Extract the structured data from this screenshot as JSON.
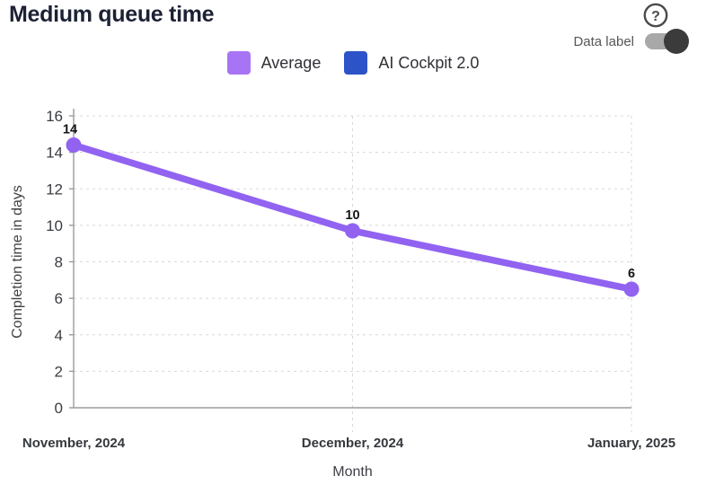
{
  "header": {
    "title": "Medium queue time",
    "help_icon": "question-mark-circle-icon"
  },
  "controls": {
    "data_label_toggle": {
      "label": "Data label",
      "state": "on"
    }
  },
  "legend": {
    "items": [
      {
        "label": "Average",
        "color": "#a874f6"
      },
      {
        "label": "AI Cockpit 2.0",
        "color": "#2d53c8"
      }
    ]
  },
  "chart_data": {
    "type": "line",
    "title": "Medium queue time",
    "x": [
      "November, 2024",
      "December, 2024",
      "January, 2025"
    ],
    "xlabel": "Month",
    "ylabel": "Completion time in days",
    "ylim": [
      0,
      16
    ],
    "yticks": [
      0,
      2,
      4,
      6,
      8,
      10,
      12,
      14,
      16
    ],
    "grid": true,
    "legend_position": "top-center",
    "series": [
      {
        "name": "Average",
        "color": "#9163f0",
        "values": [
          14.4,
          9.7,
          6.5
        ],
        "data_labels": [
          "14",
          "10",
          "6"
        ]
      },
      {
        "name": "AI Cockpit 2.0",
        "color": "#2d53c8",
        "values": []
      }
    ]
  },
  "colors": {
    "title": "#1c2134",
    "help_icon": "#4a4a4a",
    "toggle_track": "#a8a8a8",
    "toggle_knob": "#3b3b3b",
    "grid": "#d8d8d8",
    "axis": "#9b9b9b"
  }
}
